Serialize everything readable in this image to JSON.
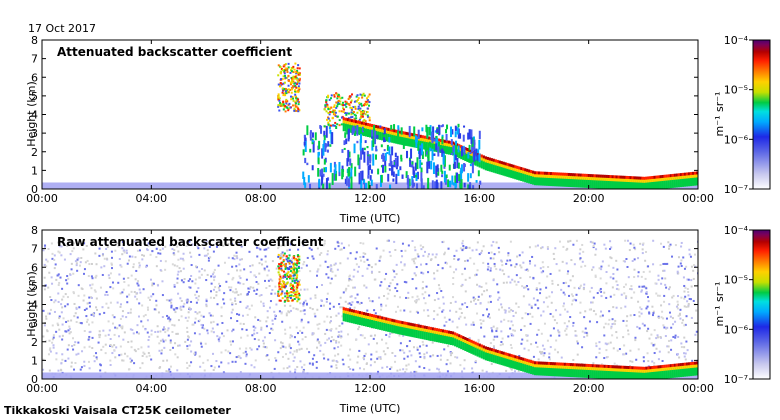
{
  "header": {
    "date": "17 Oct 2017"
  },
  "footer": {
    "station": "Tikkakoski Vaisala CT25K ceilometer"
  },
  "colorbar": {
    "unit_label": "m⁻¹ sr⁻¹",
    "tick_labels": [
      "10⁻⁴",
      "10⁻⁵",
      "10⁻⁶",
      "10⁻⁷"
    ],
    "log_range": [
      -7,
      -4
    ],
    "colors": [
      "#ffffff",
      "#c8c8ee",
      "#5b66e6",
      "#1e28e6",
      "#00aaff",
      "#00e0e0",
      "#00cc44",
      "#c8e000",
      "#ffd000",
      "#ff7a00",
      "#ff2000",
      "#b40000",
      "#7a005a",
      "#4a0070"
    ]
  },
  "chart_data": [
    {
      "type": "heatmap",
      "title": "Attenuated backscatter coefficient",
      "xlabel": "Time (UTC)",
      "ylabel": "Height (km)",
      "x_tick_labels": [
        "00:00",
        "04:00",
        "08:00",
        "12:00",
        "16:00",
        "20:00",
        "00:00"
      ],
      "y_tick_labels": [
        "0",
        "1",
        "2",
        "3",
        "4",
        "5",
        "6",
        "7",
        "8"
      ],
      "xlim_hours": [
        0,
        24
      ],
      "ylim_km": [
        0,
        8
      ],
      "features": [
        {
          "kind": "boundary_layer",
          "time_h": [
            0,
            24
          ],
          "height_km": [
            0,
            0.35
          ],
          "level": "low"
        },
        {
          "kind": "cloud_layer",
          "time_h": [
            8.6,
            9.4
          ],
          "height_km": [
            4.2,
            6.8
          ],
          "level": "high"
        },
        {
          "kind": "cloud_layer",
          "time_h": [
            10.3,
            12.0
          ],
          "height_km": [
            3.4,
            5.2
          ],
          "level": "high"
        },
        {
          "kind": "descending_cloud",
          "path": [
            [
              11.0,
              3.8
            ],
            [
              13.0,
              3.1
            ],
            [
              15.0,
              2.5
            ],
            [
              16.2,
              1.7
            ],
            [
              18.0,
              0.9
            ],
            [
              22.0,
              0.6
            ],
            [
              24.0,
              0.9
            ]
          ],
          "level": "peak"
        },
        {
          "kind": "precipitation_streaks",
          "time_h": [
            9.5,
            16.0
          ],
          "height_km": [
            0.2,
            3.5
          ],
          "level": "mid"
        }
      ]
    },
    {
      "type": "heatmap",
      "title": "Raw attenuated backscatter coefficient",
      "xlabel": "Time (UTC)",
      "ylabel": "Height (km)",
      "x_tick_labels": [
        "00:00",
        "04:00",
        "08:00",
        "12:00",
        "16:00",
        "20:00",
        "00:00"
      ],
      "y_tick_labels": [
        "0",
        "1",
        "2",
        "3",
        "4",
        "5",
        "6",
        "7",
        "8"
      ],
      "xlim_hours": [
        0,
        24
      ],
      "ylim_km": [
        0,
        8
      ],
      "features": [
        {
          "kind": "noise_field",
          "time_h": [
            0,
            24
          ],
          "height_km": [
            0,
            7.5
          ],
          "level": "noise"
        },
        {
          "kind": "boundary_layer",
          "time_h": [
            0,
            24
          ],
          "height_km": [
            0,
            0.35
          ],
          "level": "low"
        },
        {
          "kind": "cloud_layer",
          "time_h": [
            8.6,
            9.4
          ],
          "height_km": [
            4.2,
            6.8
          ],
          "level": "high"
        },
        {
          "kind": "descending_cloud",
          "path": [
            [
              11.0,
              3.8
            ],
            [
              13.0,
              3.1
            ],
            [
              15.0,
              2.5
            ],
            [
              16.2,
              1.7
            ],
            [
              18.0,
              0.9
            ],
            [
              22.0,
              0.6
            ],
            [
              24.0,
              0.9
            ]
          ],
          "level": "peak"
        }
      ]
    }
  ]
}
